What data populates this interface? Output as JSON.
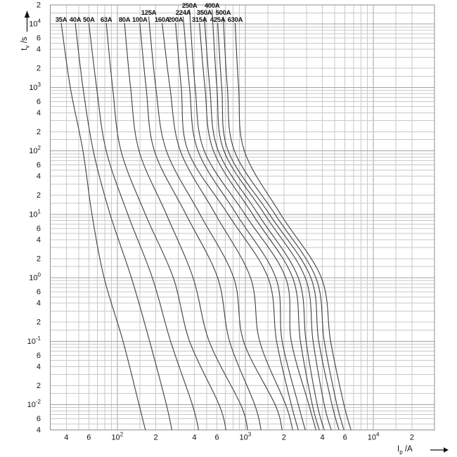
{
  "colors": {
    "grid_minor": "#c9c9c9",
    "grid_major": "#a3a3a3",
    "border": "#8f8f8f",
    "curve": "#3f3f3f",
    "text": "#111111"
  },
  "chart_data": {
    "type": "line",
    "title": "",
    "xlabel": "Ip /A",
    "ylabel": "tv /s",
    "grid": "log-log, mantissa lines at 1, 1.5, 2, 3, 4, 5, 6, 7, 8, 9",
    "x_axis": {
      "title_main": "I",
      "title_sub": "p",
      "title_rest": "/A",
      "scale": "log",
      "min": 30,
      "max": 30000,
      "minor_mantissas": [
        1,
        1.5,
        2,
        3,
        4,
        5,
        6,
        7,
        8,
        9
      ],
      "ticks": [
        {
          "v": 40,
          "t": "4"
        },
        {
          "v": 60,
          "t": "6"
        },
        {
          "v": 100,
          "t": "10",
          "sup": "2"
        },
        {
          "v": 200,
          "t": "2"
        },
        {
          "v": 400,
          "t": "4"
        },
        {
          "v": 600,
          "t": "6"
        },
        {
          "v": 1000,
          "t": "10",
          "sup": "3"
        },
        {
          "v": 2000,
          "t": "2"
        },
        {
          "v": 4000,
          "t": "4"
        },
        {
          "v": 6000,
          "t": "6"
        },
        {
          "v": 10000,
          "t": "10",
          "sup": "4"
        },
        {
          "v": 20000,
          "t": "2"
        }
      ]
    },
    "y_axis": {
      "title_main": "t",
      "title_sub": "v",
      "title_rest": "/s",
      "scale": "log",
      "min": 0.004,
      "max": 20000,
      "minor_mantissas": [
        1,
        1.5,
        2,
        3,
        4,
        5,
        6,
        7,
        8,
        9
      ],
      "ticks": [
        {
          "v": 20000,
          "t": "2"
        },
        {
          "v": 10000,
          "t": "10",
          "sup": "4"
        },
        {
          "v": 6000,
          "t": "6"
        },
        {
          "v": 4000,
          "t": "4"
        },
        {
          "v": 2000,
          "t": "2"
        },
        {
          "v": 1000,
          "t": "10",
          "sup": "3"
        },
        {
          "v": 600,
          "t": "6"
        },
        {
          "v": 400,
          "t": "4"
        },
        {
          "v": 200,
          "t": "2"
        },
        {
          "v": 100,
          "t": "10",
          "sup": "2"
        },
        {
          "v": 60,
          "t": "6"
        },
        {
          "v": 40,
          "t": "4"
        },
        {
          "v": 20,
          "t": "2"
        },
        {
          "v": 10,
          "t": "10",
          "sup": "1"
        },
        {
          "v": 6,
          "t": "6"
        },
        {
          "v": 4,
          "t": "4"
        },
        {
          "v": 2,
          "t": "2"
        },
        {
          "v": 1,
          "t": "10",
          "sup": "0"
        },
        {
          "v": 0.6,
          "t": "6"
        },
        {
          "v": 0.4,
          "t": "4"
        },
        {
          "v": 0.2,
          "t": "2"
        },
        {
          "v": 0.1,
          "t": "10",
          "sup": "-1"
        },
        {
          "v": 0.06,
          "t": "6"
        },
        {
          "v": 0.04,
          "t": "4"
        },
        {
          "v": 0.02,
          "t": "2"
        },
        {
          "v": 0.01,
          "t": "10",
          "sup": "-2"
        },
        {
          "v": 0.006,
          "t": "6"
        },
        {
          "v": 0.004,
          "t": "4"
        }
      ]
    },
    "series": [
      {
        "name": "35A",
        "label_row": 3,
        "points": [
          [
            36.5,
            10400
          ],
          [
            43,
            1000
          ],
          [
            54,
            100
          ],
          [
            63.5,
            10
          ],
          [
            79,
            1
          ],
          [
            111,
            0.1
          ],
          [
            148,
            0.01
          ],
          [
            166,
            0.004
          ]
        ]
      },
      {
        "name": "40A",
        "label_row": 3,
        "points": [
          [
            47,
            10400
          ],
          [
            54,
            1000
          ],
          [
            65,
            100
          ],
          [
            88,
            10
          ],
          [
            129,
            1
          ],
          [
            179,
            0.1
          ],
          [
            242,
            0.01
          ],
          [
            267,
            0.004
          ]
        ]
      },
      {
        "name": "50A",
        "label_row": 3,
        "points": [
          [
            60,
            10400
          ],
          [
            69,
            1000
          ],
          [
            82,
            100
          ],
          [
            121,
            10
          ],
          [
            188,
            1
          ],
          [
            261,
            0.1
          ],
          [
            386,
            0.01
          ],
          [
            432,
            0.004
          ]
        ]
      },
      {
        "name": "63A",
        "label_row": 3,
        "points": [
          [
            82,
            10400
          ],
          [
            92,
            1000
          ],
          [
            107,
            100
          ],
          [
            166,
            10
          ],
          [
            274,
            1
          ],
          [
            367,
            0.1
          ],
          [
            624,
            0.01
          ],
          [
            707,
            0.004
          ]
        ]
      },
      {
        "name": "80A",
        "label_row": 3,
        "points": [
          [
            114,
            10400
          ],
          [
            127,
            1000
          ],
          [
            148,
            100
          ],
          [
            242,
            10
          ],
          [
            391,
            1
          ],
          [
            522,
            0.1
          ],
          [
            921,
            0.01
          ],
          [
            1045,
            0.004
          ]
        ]
      },
      {
        "name": "100A",
        "label_row": 3,
        "points": [
          [
            150,
            10400
          ],
          [
            168,
            1000
          ],
          [
            195,
            100
          ],
          [
            344,
            10
          ],
          [
            608,
            1
          ],
          [
            753,
            0.1
          ],
          [
            1185,
            0.01
          ],
          [
            1327,
            0.004
          ]
        ]
      },
      {
        "name": "125A",
        "label_row": 2,
        "points": [
          [
            176,
            13100
          ],
          [
            200,
            1000
          ],
          [
            242,
            100
          ],
          [
            443,
            10
          ],
          [
            812,
            1
          ],
          [
            969,
            0.1
          ],
          [
            1709,
            0.01
          ],
          [
            1938,
            0.004
          ]
        ]
      },
      {
        "name": "160A",
        "label_row": 3,
        "points": [
          [
            224,
            10400
          ],
          [
            258,
            1000
          ],
          [
            311,
            100
          ],
          [
            585,
            10
          ],
          [
            1099,
            1
          ],
          [
            1294,
            0.1
          ],
          [
            2065,
            0.01
          ],
          [
            2344,
            0.004
          ]
        ]
      },
      {
        "name": "200A",
        "label_row": 3,
        "points": [
          [
            285,
            10400
          ],
          [
            316,
            1000
          ],
          [
            357,
            100
          ],
          [
            734,
            10
          ],
          [
            1506,
            1
          ],
          [
            1754,
            0.1
          ],
          [
            2286,
            0.01
          ],
          [
            2594,
            0.004
          ]
        ]
      },
      {
        "name": "224A",
        "label_row": 2,
        "points": [
          [
            327,
            13100
          ],
          [
            367,
            1000
          ],
          [
            427,
            100
          ],
          [
            855,
            10
          ],
          [
            1730,
            1
          ],
          [
            1938,
            0.1
          ],
          [
            2594,
            0.01
          ],
          [
            2938,
            0.004
          ]
        ]
      },
      {
        "name": "250A",
        "label_row": 1,
        "points": [
          [
            367,
            16900
          ],
          [
            406,
            1000
          ],
          [
            478,
            100
          ],
          [
            994,
            10
          ],
          [
            2065,
            1
          ],
          [
            2286,
            0.1
          ],
          [
            3133,
            0.01
          ],
          [
            3555,
            0.004
          ]
        ]
      },
      {
        "name": "315A",
        "label_row": 3,
        "points": [
          [
            438,
            10400
          ],
          [
            484,
            1000
          ],
          [
            564,
            100
          ],
          [
            1142,
            10
          ],
          [
            2344,
            1
          ],
          [
            2692,
            0.1
          ],
          [
            3335,
            0.01
          ],
          [
            3784,
            0.004
          ]
        ]
      },
      {
        "name": "350A",
        "label_row": 2,
        "points": [
          [
            478,
            13100
          ],
          [
            528,
            1000
          ],
          [
            615,
            100
          ],
          [
            1262,
            10
          ],
          [
            2594,
            1
          ],
          [
            2978,
            0.1
          ],
          [
            3645,
            0.01
          ],
          [
            4133,
            0.004
          ]
        ]
      },
      {
        "name": "400A",
        "label_row": 1,
        "points": [
          [
            550,
            16900
          ],
          [
            600,
            1000
          ],
          [
            681,
            100
          ],
          [
            1416,
            10
          ],
          [
            2938,
            1
          ],
          [
            3381,
            0.1
          ],
          [
            4133,
            0.01
          ],
          [
            4687,
            0.004
          ]
        ]
      },
      {
        "name": "425A",
        "label_row": 3,
        "points": [
          [
            608,
            10400
          ],
          [
            655,
            1000
          ],
          [
            734,
            100
          ],
          [
            1546,
            10
          ],
          [
            3251,
            1
          ],
          [
            3740,
            0.1
          ],
          [
            4752,
            0.01
          ],
          [
            5383,
            0.004
          ]
        ]
      },
      {
        "name": "500A",
        "label_row": 2,
        "points": [
          [
            671,
            13100
          ],
          [
            724,
            1000
          ],
          [
            822,
            100
          ],
          [
            1709,
            10
          ],
          [
            3555,
            1
          ],
          [
            4133,
            0.1
          ],
          [
            5188,
            0.01
          ],
          [
            5888,
            0.004
          ]
        ]
      },
      {
        "name": "630A",
        "label_row": 3,
        "points": [
          [
            832,
            10400
          ],
          [
            887,
            1000
          ],
          [
            982,
            100
          ],
          [
            1891,
            10
          ],
          [
            3926,
            1
          ],
          [
            4634,
            0.1
          ],
          [
            5888,
            0.01
          ],
          [
            6681,
            0.004
          ]
        ]
      }
    ]
  }
}
